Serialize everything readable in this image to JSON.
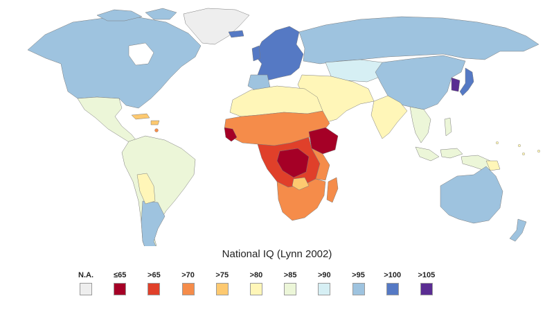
{
  "title": "National IQ (Lynn 2002)",
  "legend": [
    {
      "label": "N.A.",
      "color": "#eeeeee"
    },
    {
      "label": "≤65",
      "color": "#a50026"
    },
    {
      "label": ">65",
      "color": "#e0402a"
    },
    {
      "label": ">70",
      "color": "#f58c4a"
    },
    {
      "label": ">75",
      "color": "#fdc970"
    },
    {
      "label": ">80",
      "color": "#fff6b8"
    },
    {
      "label": ">85",
      "color": "#ecf6d8"
    },
    {
      "label": ">90",
      "color": "#d6eff4"
    },
    {
      "label": ">95",
      "color": "#9ec3df"
    },
    {
      "label": ">100",
      "color": "#5579c4"
    },
    {
      "label": ">105",
      "color": "#5a2d92"
    }
  ]
}
